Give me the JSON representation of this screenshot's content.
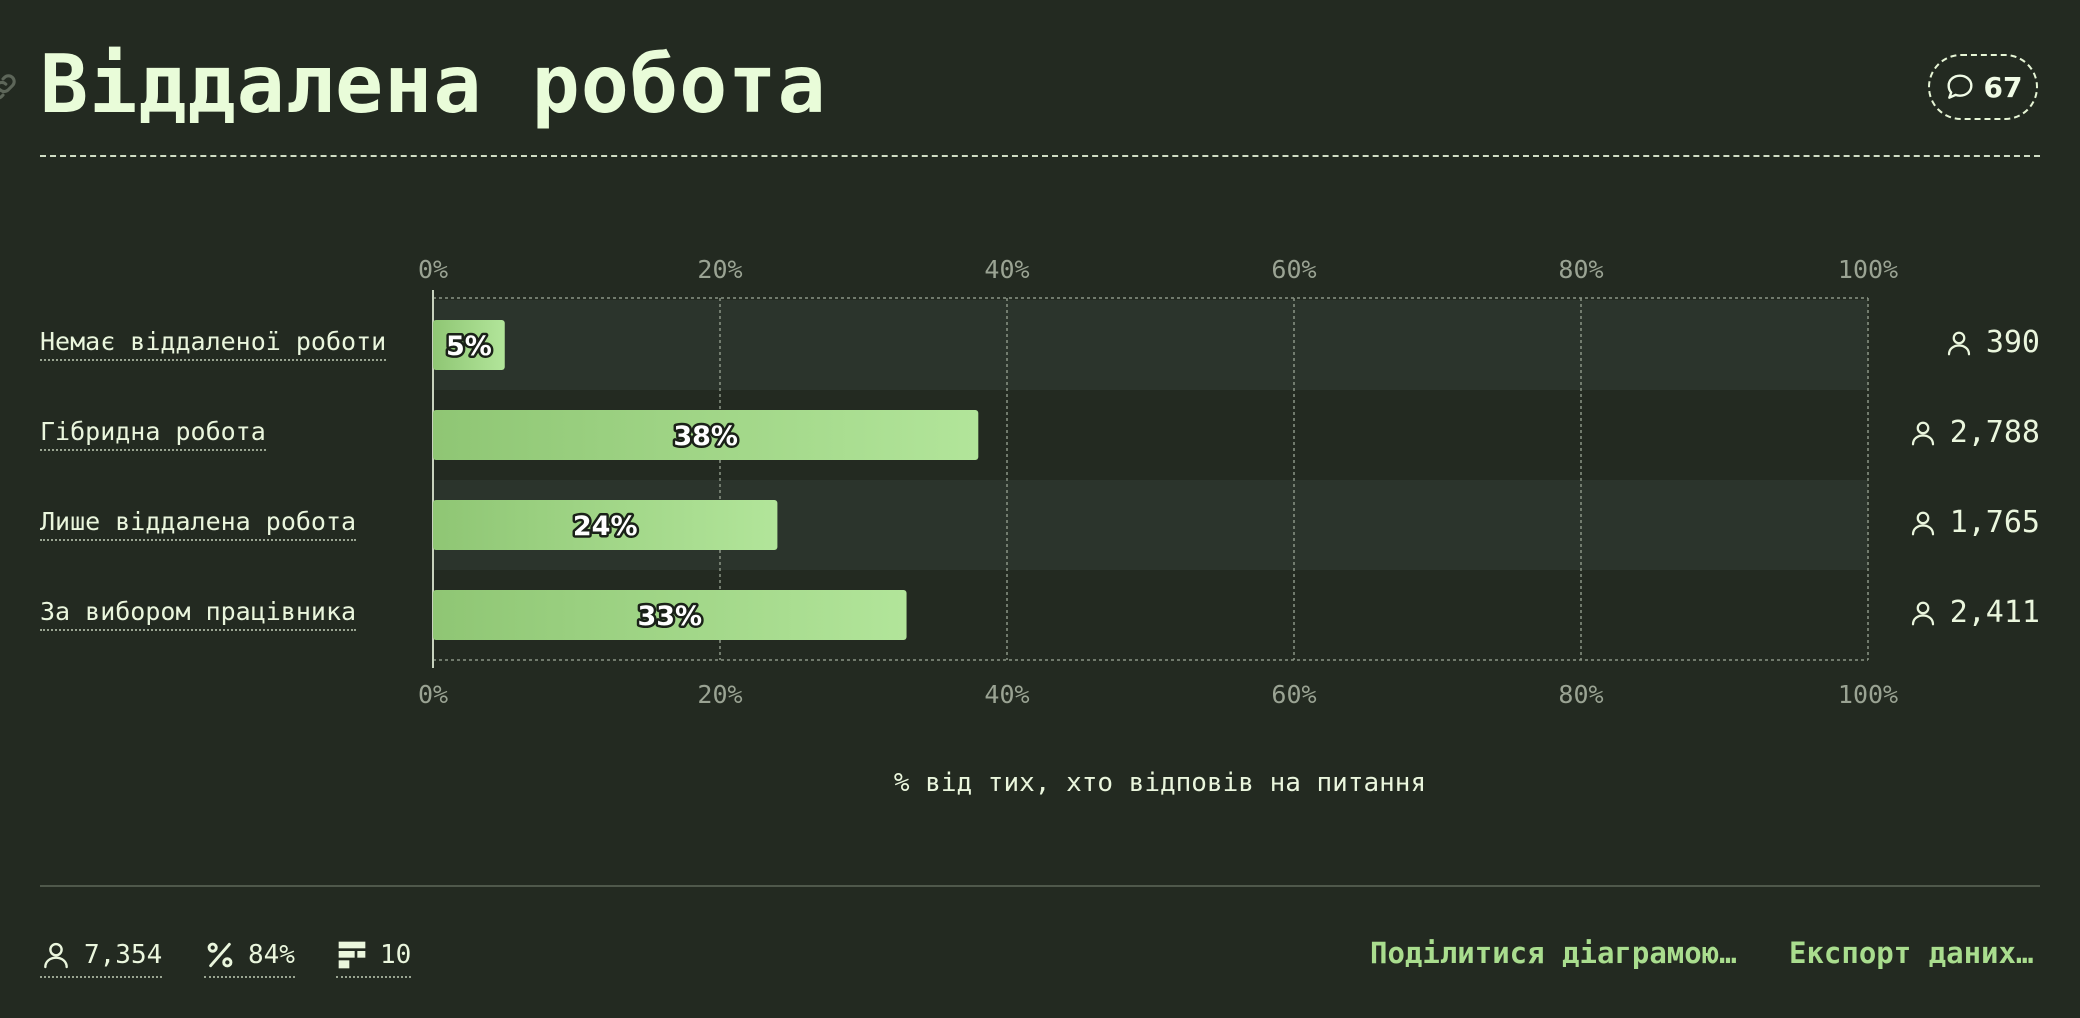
{
  "title": "Віддалена робота",
  "comments": {
    "count": "67"
  },
  "chart_data": {
    "type": "bar",
    "orientation": "horizontal",
    "categories": [
      "Немає віддаленої роботи",
      "Гібридна робота",
      "Лише віддалена робота",
      "За вибором працівника"
    ],
    "values": [
      5,
      38,
      24,
      33
    ],
    "value_labels": [
      "5%",
      "38%",
      "24%",
      "33%"
    ],
    "counts": [
      "390",
      "2,788",
      "1,765",
      "2,411"
    ],
    "xlim": [
      0,
      100
    ],
    "xticks": [
      "0%",
      "20%",
      "40%",
      "60%",
      "80%",
      "100%"
    ],
    "xlabel": "% від тих, хто відповів на питання",
    "grid": true,
    "colors": {
      "bar_start": "#8fc674",
      "bar_end": "#b2e59a",
      "row_alt": "#2b342c"
    }
  },
  "footer": {
    "respondents": "7,354",
    "percent": "84%",
    "questions": "10",
    "share_label": "Поділитися діаграмою…",
    "export_label": "Експорт даних…"
  }
}
